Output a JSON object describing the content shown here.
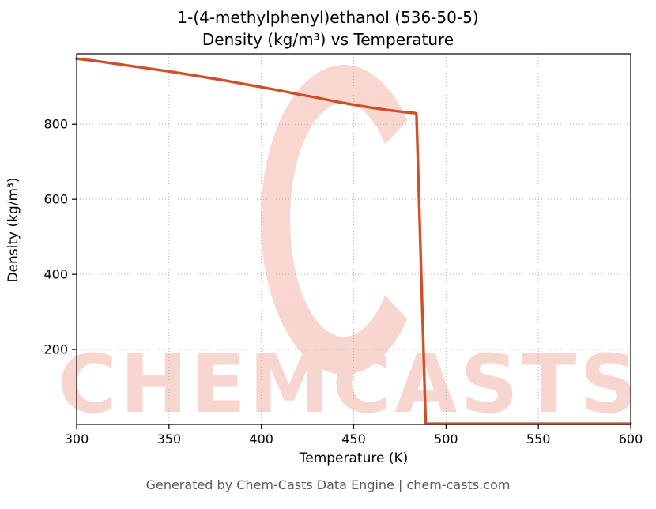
{
  "title": {
    "line1": "1-(4-methylphenyl)ethanol (536-50-5)",
    "line2": "Density (kg/m³) vs Temperature"
  },
  "footer": {
    "text": "Generated by Chem-Casts Data Engine | chem-casts.com"
  },
  "watermark": {
    "word": "CHEMCASTS",
    "logo_letter": "C",
    "color": "#f5beb4"
  },
  "chart_data": {
    "type": "line",
    "title": "1-(4-methylphenyl)ethanol (536-50-5) Density (kg/m³) vs Temperature",
    "xlabel": "Temperature (K)",
    "ylabel": "Density (kg/m³)",
    "xlim": [
      300,
      600
    ],
    "ylim": [
      0,
      988
    ],
    "x_ticks": [
      300,
      350,
      400,
      450,
      500,
      550,
      600
    ],
    "y_ticks": [
      200,
      400,
      600,
      800
    ],
    "grid": true,
    "grid_style": "dotted",
    "legend": "none",
    "line_color": "#d14f28",
    "series": [
      {
        "name": "Density",
        "x": [
          300,
          310,
          320,
          330,
          340,
          350,
          360,
          370,
          380,
          390,
          400,
          410,
          420,
          430,
          440,
          450,
          460,
          470,
          480,
          483,
          484,
          489,
          500,
          520,
          540,
          560,
          580,
          600
        ],
        "y": [
          975,
          969,
          962,
          955,
          948,
          941,
          933,
          925,
          917,
          908,
          899,
          890,
          880,
          871,
          861,
          852,
          844,
          837,
          831,
          830,
          829,
          2,
          2,
          2,
          2,
          2,
          2,
          2
        ]
      }
    ]
  }
}
